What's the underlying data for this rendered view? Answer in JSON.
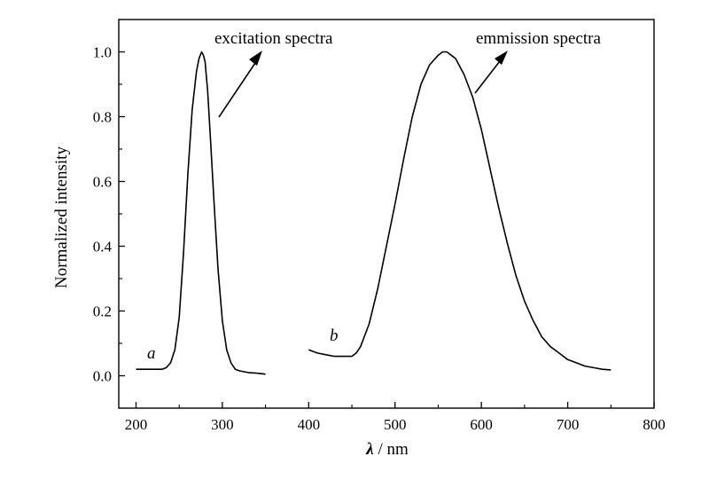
{
  "chart_data": {
    "type": "line",
    "xlabel": "λ / nm",
    "ylabel": "Normalized intensity",
    "xlim": [
      180,
      800
    ],
    "ylim": [
      -0.1,
      1.1
    ],
    "x_ticks": [
      200,
      300,
      400,
      500,
      600,
      700,
      800
    ],
    "y_ticks": [
      0.0,
      0.2,
      0.4,
      0.6,
      0.8,
      1.0
    ],
    "grid": false,
    "legend": "none",
    "annotations": [
      {
        "text": "excitation spectra",
        "series": "a"
      },
      {
        "text": "emmission spectra",
        "series": "b"
      }
    ],
    "series": [
      {
        "name": "a",
        "x": [
          200,
          210,
          220,
          230,
          235,
          240,
          245,
          250,
          255,
          260,
          265,
          270,
          273,
          276,
          278,
          280,
          283,
          286,
          290,
          295,
          300,
          305,
          310,
          315,
          320,
          330,
          340,
          350
        ],
        "values": [
          0.02,
          0.02,
          0.02,
          0.02,
          0.025,
          0.04,
          0.08,
          0.18,
          0.38,
          0.62,
          0.82,
          0.94,
          0.98,
          1.0,
          0.99,
          0.97,
          0.88,
          0.74,
          0.55,
          0.33,
          0.17,
          0.08,
          0.04,
          0.02,
          0.015,
          0.01,
          0.008,
          0.005
        ]
      },
      {
        "name": "b",
        "x": [
          400,
          410,
          420,
          430,
          440,
          450,
          455,
          460,
          470,
          480,
          490,
          500,
          510,
          520,
          530,
          540,
          550,
          555,
          560,
          565,
          570,
          580,
          590,
          600,
          610,
          620,
          630,
          640,
          650,
          660,
          670,
          680,
          690,
          700,
          710,
          720,
          730,
          740,
          750
        ],
        "values": [
          0.08,
          0.07,
          0.065,
          0.06,
          0.06,
          0.06,
          0.07,
          0.09,
          0.16,
          0.27,
          0.4,
          0.53,
          0.67,
          0.8,
          0.9,
          0.96,
          0.99,
          1.0,
          1.0,
          0.99,
          0.98,
          0.93,
          0.86,
          0.76,
          0.64,
          0.52,
          0.41,
          0.31,
          0.23,
          0.17,
          0.12,
          0.09,
          0.07,
          0.05,
          0.04,
          0.03,
          0.025,
          0.02,
          0.018
        ]
      }
    ]
  }
}
